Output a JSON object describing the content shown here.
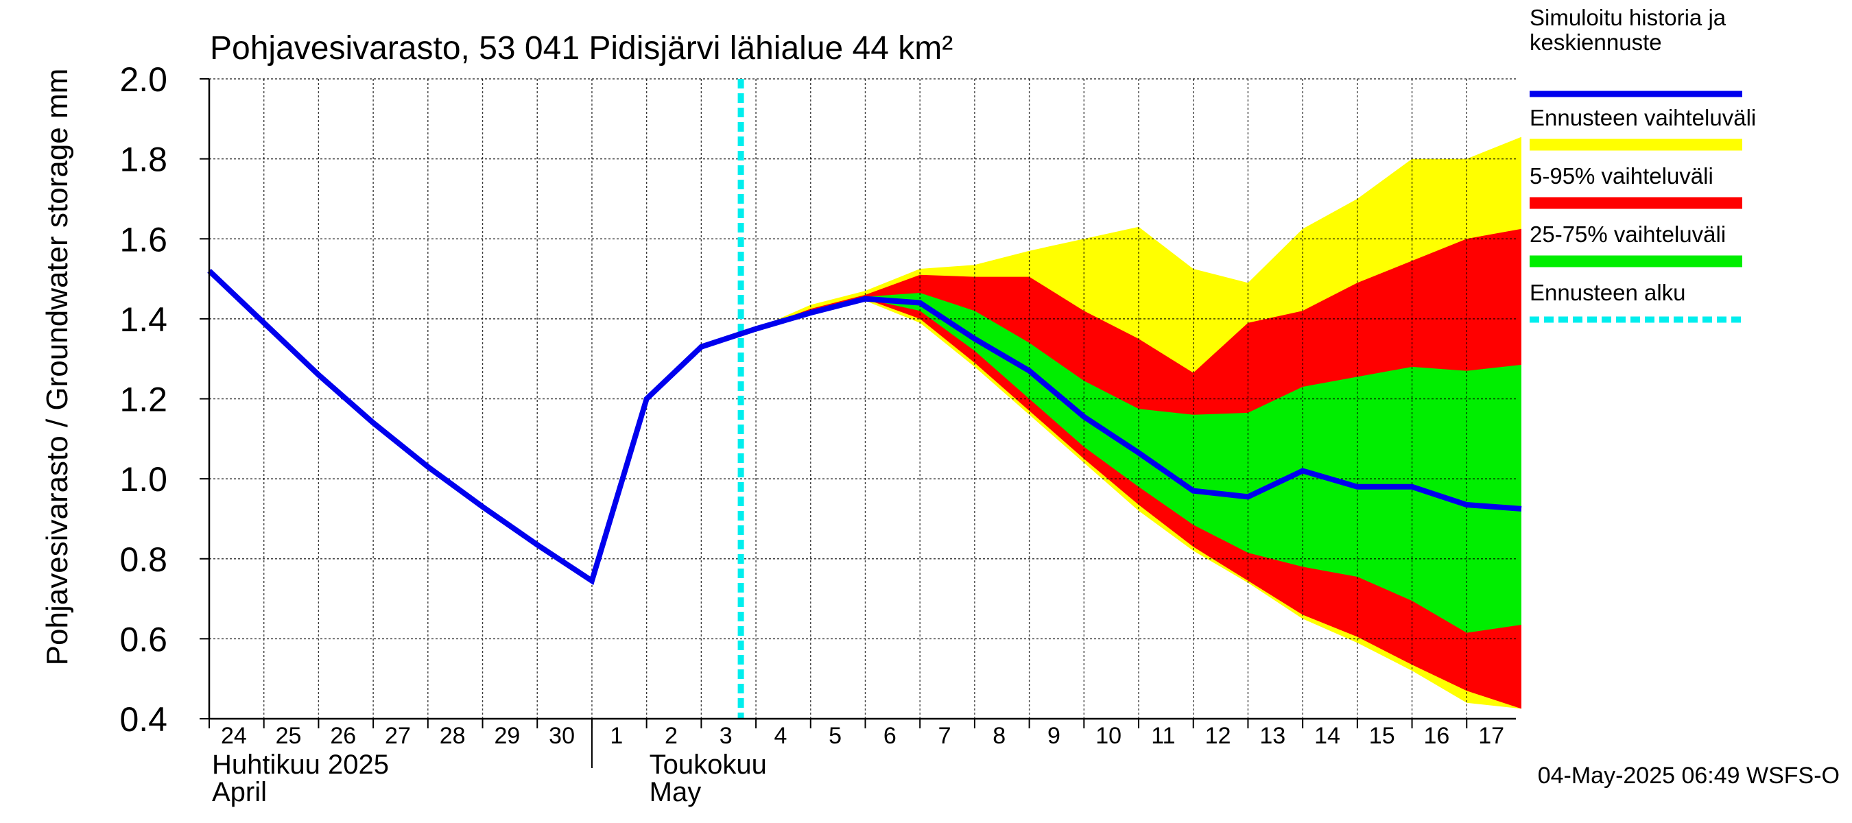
{
  "chart_data": {
    "type": "area",
    "title": "Pohjavesivarasto, 53 041 Pidisjärvi lähialue 44 km²",
    "ylabel": "Pohjavesivarasto / Groundwater storage   mm",
    "ylim": [
      0.4,
      2.0
    ],
    "yticks": [
      "0.4",
      "0.6",
      "0.8",
      "1.0",
      "1.2",
      "1.4",
      "1.6",
      "1.8",
      "2.0"
    ],
    "grid": true,
    "x_day_labels": [
      "24",
      "25",
      "26",
      "27",
      "28",
      "29",
      "30",
      "1",
      "2",
      "3",
      "4",
      "5",
      "6",
      "7",
      "8",
      "9",
      "10",
      "11",
      "12",
      "13",
      "14",
      "15",
      "16",
      "17"
    ],
    "month_labels": [
      {
        "fi": "Huhtikuu  2025",
        "en": "April"
      },
      {
        "fi": "Toukokuu",
        "en": "May"
      }
    ],
    "forecast_start_day_index": 10,
    "series": [
      {
        "name": "Simuloitu historia ja keskiennuste",
        "color": "#0000ee",
        "values": [
          1.52,
          1.39,
          1.26,
          1.14,
          1.03,
          0.93,
          0.835,
          0.745,
          1.2,
          1.33,
          1.375,
          1.415,
          1.45,
          1.44,
          1.35,
          1.27,
          1.155,
          1.065,
          0.97,
          0.955,
          1.02,
          0.98,
          0.98,
          0.935,
          0.925
        ]
      },
      {
        "name": "Ennusteen vaihteluväli",
        "color": "#ffff00",
        "upper": [
          1.375,
          1.435,
          1.47,
          1.525,
          1.535,
          1.57,
          1.6,
          1.63,
          1.525,
          1.49,
          1.625,
          1.7,
          1.8,
          1.8,
          1.855
        ],
        "lower": [
          1.375,
          1.415,
          1.445,
          1.39,
          1.28,
          1.16,
          1.04,
          0.92,
          0.82,
          0.74,
          0.65,
          0.59,
          0.52,
          0.44,
          0.425
        ]
      },
      {
        "name": "5-95% vaihteluväli",
        "color": "#ff0000",
        "upper": [
          1.375,
          1.425,
          1.46,
          1.51,
          1.505,
          1.505,
          1.42,
          1.35,
          1.265,
          1.39,
          1.42,
          1.49,
          1.545,
          1.6,
          1.625
        ],
        "lower": [
          1.375,
          1.42,
          1.45,
          1.4,
          1.29,
          1.17,
          1.05,
          0.935,
          0.83,
          0.745,
          0.66,
          0.605,
          0.535,
          0.47,
          0.425
        ]
      },
      {
        "name": "25-75% vaihteluväli",
        "color": "#00ee00",
        "upper": [
          1.375,
          1.42,
          1.455,
          1.465,
          1.42,
          1.34,
          1.245,
          1.175,
          1.16,
          1.165,
          1.23,
          1.255,
          1.28,
          1.27,
          1.285
        ],
        "lower": [
          1.375,
          1.42,
          1.45,
          1.42,
          1.32,
          1.2,
          1.08,
          0.98,
          0.885,
          0.815,
          0.78,
          0.755,
          0.695,
          0.615,
          0.635
        ]
      },
      {
        "name": "Ennusteen alku",
        "color": "#00eeee"
      }
    ],
    "legend_position": "right",
    "timestamp": "04-May-2025 06:49 WSFS-O"
  }
}
